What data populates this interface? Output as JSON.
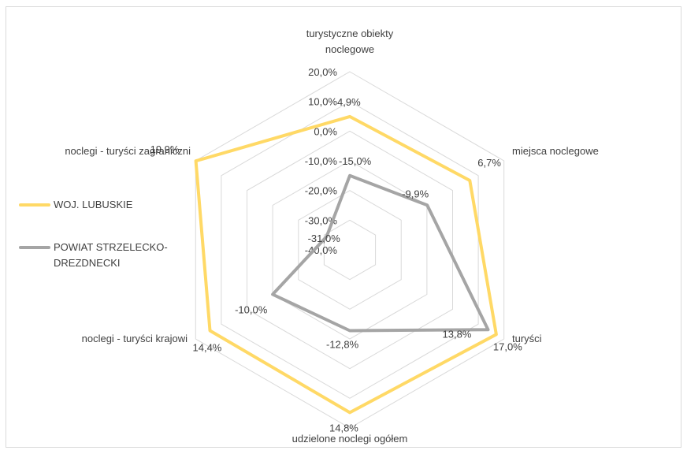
{
  "chart_data": {
    "type": "radar",
    "axes": [
      "turystyczne obiekty noclegowe",
      "miejsca noclegowe",
      "turyści",
      "udzielone noclegi ogółem",
      "noclegi - turyści krajowi",
      "noclegi - turyści zagraniczni"
    ],
    "axis_label_lines": [
      [
        "turystyczne obiekty",
        "noclegowe"
      ],
      [
        "miejsca noclegowe"
      ],
      [
        "turyści"
      ],
      [
        "udzielone noclegi ogółem"
      ],
      [
        "noclegi - turyści krajowi"
      ],
      [
        "noclegi - turyści zagraniczni"
      ]
    ],
    "rlim": [
      -40,
      20
    ],
    "ticks": [
      20,
      10,
      0,
      -10,
      -20,
      -30,
      -40
    ],
    "tick_labels": [
      "20,0%",
      "10,0%",
      "0,0%",
      "-10,0%",
      "-20,0%",
      "-30,0%",
      "-40,0%"
    ],
    "unit": "%",
    "legend_position": "left",
    "series": [
      {
        "name": "WOJ. LUBUSKIE",
        "color": "#FFD966",
        "values": [
          4.9,
          6.7,
          17.0,
          14.8,
          14.4,
          19.9
        ],
        "value_labels": [
          "4,9%",
          "6,7%",
          "17,0%",
          "14,8%",
          "14,4%",
          "19,9%"
        ]
      },
      {
        "name": "POWIAT STRZELECKO-DREZDNECKI",
        "name_lines": [
          "POWIAT STRZELECKO-",
          "DREZDNECKI"
        ],
        "color": "#A5A5A5",
        "values": [
          -15.0,
          -9.9,
          13.8,
          -12.8,
          -10.0,
          -31.0
        ],
        "value_labels": [
          "-15,0%",
          "-9,9%",
          "13,8%",
          "-12,8%",
          "-10,0%",
          "-31,0%"
        ]
      }
    ]
  }
}
